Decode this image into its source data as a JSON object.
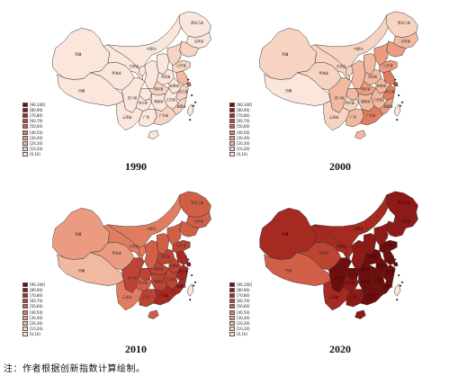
{
  "legend_bins": [
    "[90,100]",
    "[80,90)",
    "[70,80)",
    "[60,70)",
    "[50,60)",
    "[40,50)",
    "[30,40)",
    "[20,30)",
    "[10,20)",
    "[0,10)"
  ],
  "scale_colors": [
    "#fbe6db",
    "#f7d3c1",
    "#f2b9a1",
    "#eb9b80",
    "#e07d61",
    "#d15f47",
    "#bd4333",
    "#a52a22",
    "#8d1a17",
    "#6e0e0c"
  ],
  "province_labels": {
    "heilongjiang": "黑龙江省",
    "jilin": "吉林省",
    "neimenggu": "内蒙古",
    "xinjiang": "新疆",
    "xizang": "西藏",
    "qinghai": "青海省",
    "gansu": "甘肃省",
    "sichuan": "四川省",
    "yunnan": "云南省",
    "guizhou": "贵州省",
    "hunan": "湖南省",
    "hubei": "湖北省",
    "henan": "河南省",
    "jiangxi": "江西省",
    "guangxi": "广西",
    "guangdong": "广东省",
    "fujian": "福建省",
    "zhejiang": "浙江省",
    "anhui": "安徽省",
    "shandong": "山东省"
  },
  "maps": [
    {
      "year": "1990",
      "levels": {
        "xinjiang": 0,
        "xizang": 0,
        "qinghai": 0,
        "gansu": 0,
        "neimenggu": 0,
        "ningxia": 0,
        "heilongjiang": 0,
        "jilin": 0,
        "liaoning": 1,
        "hebei": 1,
        "beijing": 4,
        "tianjin": 2,
        "shanxi": 0,
        "shaanxi": 0,
        "shandong": 1,
        "henan": 0,
        "sichuan": 0,
        "chongqing": 0,
        "hubei": 1,
        "anhui": 0,
        "jiangsu": 2,
        "shanghai": 5,
        "zhejiang": 1,
        "yunnan": 0,
        "guizhou": 0,
        "hunan": 0,
        "jiangxi": 0,
        "guangxi": 0,
        "guangdong": 1,
        "fujian": 1,
        "hainan": 0,
        "taiwan": 0
      }
    },
    {
      "year": "2000",
      "levels": {
        "xinjiang": 1,
        "xizang": 0,
        "qinghai": 1,
        "gansu": 1,
        "neimenggu": 1,
        "ningxia": 1,
        "heilongjiang": 1,
        "jilin": 2,
        "liaoning": 3,
        "hebei": 3,
        "beijing": 6,
        "tianjin": 4,
        "shanxi": 2,
        "shaanxi": 2,
        "shandong": 3,
        "henan": 2,
        "sichuan": 2,
        "chongqing": 2,
        "hubei": 3,
        "anhui": 2,
        "jiangsu": 4,
        "shanghai": 6,
        "zhejiang": 4,
        "yunnan": 1,
        "guizhou": 1,
        "hunan": 2,
        "jiangxi": 2,
        "guangxi": 2,
        "guangdong": 4,
        "fujian": 3,
        "hainan": 2,
        "taiwan": 0
      }
    },
    {
      "year": "2010",
      "levels": {
        "xinjiang": 3,
        "xizang": 2,
        "qinghai": 3,
        "gansu": 4,
        "neimenggu": 4,
        "ningxia": 4,
        "heilongjiang": 5,
        "jilin": 5,
        "liaoning": 5,
        "hebei": 5,
        "beijing": 8,
        "tianjin": 7,
        "shanxi": 5,
        "shaanxi": 5,
        "shandong": 6,
        "henan": 6,
        "sichuan": 6,
        "chongqing": 6,
        "hubei": 6,
        "anhui": 6,
        "jiangsu": 7,
        "shanghai": 8,
        "zhejiang": 7,
        "yunnan": 4,
        "guizhou": 5,
        "hunan": 6,
        "jiangxi": 6,
        "guangxi": 6,
        "guangdong": 7,
        "fujian": 7,
        "hainan": 5,
        "taiwan": 0
      }
    },
    {
      "year": "2020",
      "levels": {
        "xinjiang": 7,
        "xizang": 5,
        "qinghai": 6,
        "gansu": 7,
        "neimenggu": 7,
        "ningxia": 7,
        "heilongjiang": 8,
        "jilin": 8,
        "liaoning": 8,
        "hebei": 8,
        "beijing": 9,
        "tianjin": 9,
        "shanxi": 8,
        "shaanxi": 8,
        "shandong": 9,
        "henan": 9,
        "sichuan": 9,
        "chongqing": 9,
        "hubei": 9,
        "anhui": 9,
        "jiangsu": 9,
        "shanghai": 9,
        "zhejiang": 9,
        "yunnan": 7,
        "guizhou": 8,
        "hunan": 9,
        "jiangxi": 9,
        "guangxi": 8,
        "guangdong": 9,
        "fujian": 9,
        "hainan": 8,
        "taiwan": 0
      }
    }
  ],
  "note": "注：作者根据创新指数计算绘制。"
}
